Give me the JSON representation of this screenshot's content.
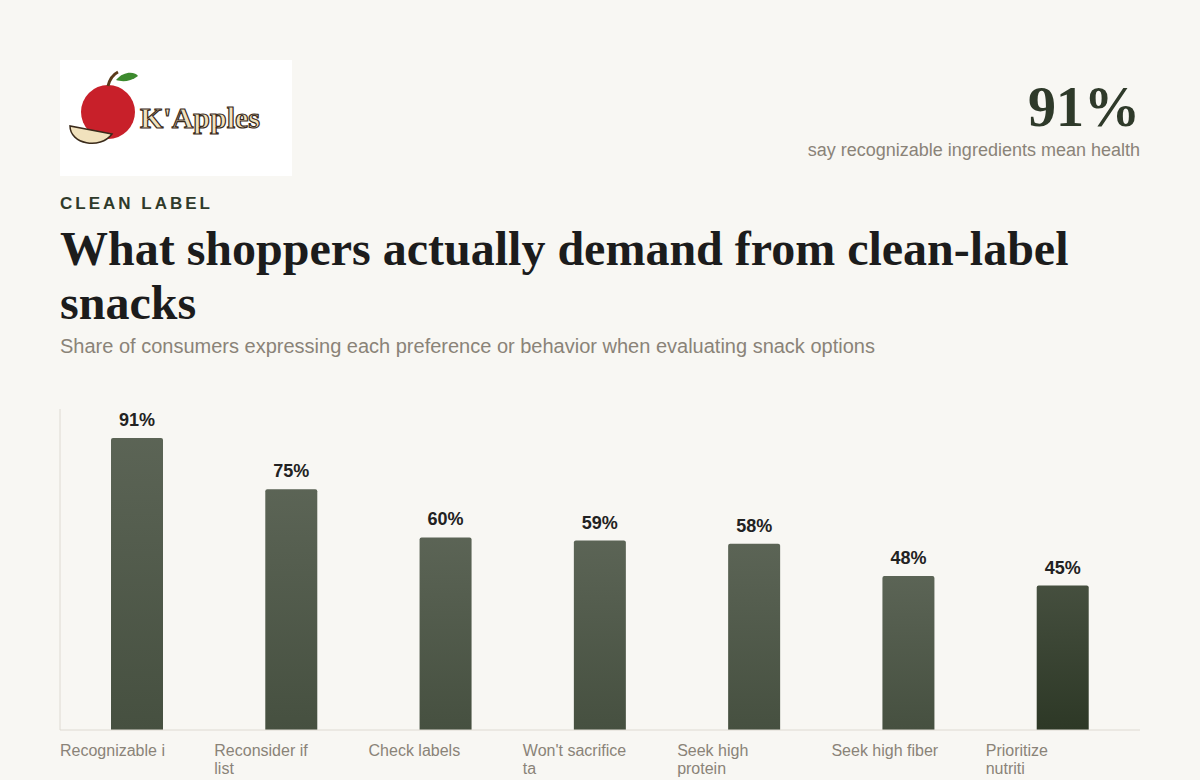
{
  "header": {
    "logo": "K'Apples",
    "eyebrow": "CLEAN LABEL",
    "stat": "91%",
    "stat_caption": "say recognizable ingredients mean health"
  },
  "chart_data": {
    "type": "bar",
    "title": "What shoppers actually demand from clean-label snacks",
    "subtitle": "Share of consumers expressing each preference or behavior when evaluating snack options",
    "categories": [
      "Recognizable i",
      "Reconsider if list",
      "Check labels",
      "Won't sacrifice ta",
      "Seek high protein",
      "Seek high fiber",
      "Prioritize nutriti"
    ],
    "values": [
      91,
      75,
      60,
      59,
      58,
      48,
      45
    ],
    "value_labels": [
      "91%",
      "75%",
      "60%",
      "59%",
      "58%",
      "48%",
      "45%"
    ],
    "colors": [
      "#465040",
      "#465040",
      "#465040",
      "#465040",
      "#465040",
      "#465040",
      "#2d3826"
    ],
    "ylim": [
      0,
      100
    ],
    "yticks": [],
    "grid": false,
    "data_labels": true,
    "tick_labels": "x"
  }
}
